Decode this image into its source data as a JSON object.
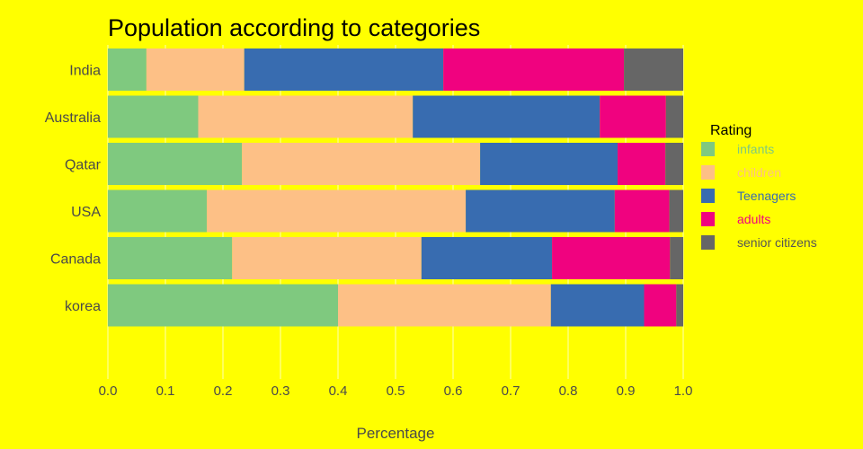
{
  "chart_data": {
    "type": "bar",
    "orientation": "horizontal",
    "stacked": true,
    "title": "Population according to categories",
    "xlabel": "Percentage",
    "ylabel": "",
    "xlim": [
      0,
      1
    ],
    "x_ticks": [
      "0.0",
      "0.1",
      "0.2",
      "0.3",
      "0.4",
      "0.5",
      "0.6",
      "0.7",
      "0.8",
      "0.9",
      "1.0"
    ],
    "grid": true,
    "legend_title": "Rating",
    "legend_position": "right",
    "categories": [
      "India",
      "Australia",
      "Qatar",
      "USA",
      "Canada",
      "korea"
    ],
    "series": [
      {
        "name": "infants",
        "color": "#7fc97f",
        "label_color": "#7fc97f",
        "values": [
          0.067,
          0.157,
          0.233,
          0.172,
          0.216,
          0.4
        ]
      },
      {
        "name": "children",
        "color": "#fdc086",
        "label_color": "#fdc086",
        "values": [
          0.17,
          0.373,
          0.414,
          0.45,
          0.329,
          0.37
        ]
      },
      {
        "name": "Teenagers",
        "color": "#386cb0",
        "label_color": "#386cb0",
        "values": [
          0.346,
          0.325,
          0.239,
          0.259,
          0.227,
          0.162
        ]
      },
      {
        "name": "adults",
        "color": "#f0027f",
        "label_color": "#f0027f",
        "values": [
          0.314,
          0.115,
          0.083,
          0.095,
          0.205,
          0.056
        ]
      },
      {
        "name": "senior citizens",
        "color": "#666666",
        "label_color": "#555555",
        "values": [
          0.103,
          0.03,
          0.031,
          0.024,
          0.023,
          0.012
        ]
      }
    ]
  }
}
